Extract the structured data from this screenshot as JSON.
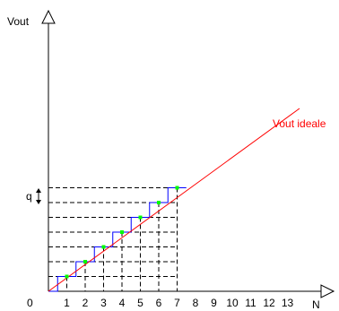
{
  "diagram": {
    "y_axis_label": "Vout",
    "x_axis_label": "N",
    "origin_label": "0",
    "ideal_label": "Vout ideale",
    "step_label": "q",
    "x_ticks": [
      "1",
      "2",
      "3",
      "4",
      "5",
      "6",
      "7",
      "8",
      "9",
      "10",
      "11",
      "12",
      "13"
    ],
    "levels": [
      1,
      2,
      3,
      4,
      5,
      6,
      7
    ],
    "colors": {
      "axes": "#000000",
      "ideal_line": "#ff0000",
      "staircase": "#0000ff",
      "points": "#00ff00",
      "dashed": "#000000"
    }
  }
}
